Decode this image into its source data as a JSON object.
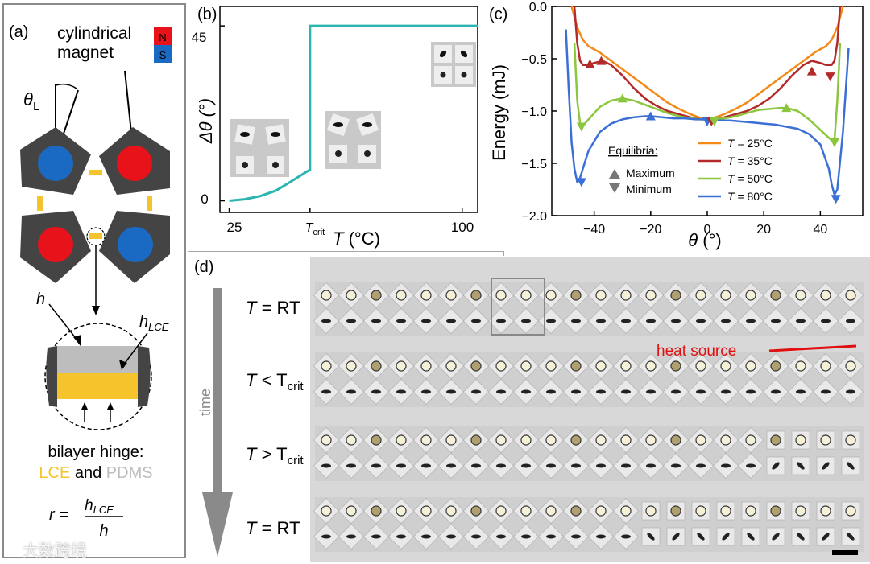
{
  "panel_a": {
    "label": "(a)",
    "magnet_label_line1": "cylindrical",
    "magnet_label_line2": "magnet",
    "pole_n": "N",
    "pole_s": "S",
    "theta_symbol": "θ",
    "theta_sub": "L",
    "h_label": "h",
    "hlce_label": "h",
    "hlce_sub": "LCE",
    "hinge_title": "bilayer hinge:",
    "hinge_lce": "LCE",
    "hinge_and": " and ",
    "hinge_pdms": "PDMS",
    "ratio_lhs": "r =",
    "ratio_num": "h",
    "ratio_num_sub": "LCE",
    "ratio_den": "h",
    "colors": {
      "lce": "#f5c42c",
      "pdms": "#bdbdbd",
      "north": "#e8121a",
      "south": "#1a6ac4",
      "body": "#444444"
    }
  },
  "panel_b": {
    "label": "(b)",
    "ylabel": "Δθ (°)",
    "xlabel_var": "T",
    "xlabel_unit": " (°C)",
    "xtick_25": "25",
    "xtick_crit": "T",
    "xtick_crit_sub": "crit",
    "xtick_100": "100",
    "ytick_0": "0",
    "ytick_45": "45",
    "line_color": "#2bb5b0"
  },
  "panel_c": {
    "label": "(c)",
    "legend_title": "Equilibria:",
    "legend_max": "Maximum",
    "legend_min": "Minimum",
    "legend_t": "T",
    "legend_temps": [
      "= 25°C",
      "= 35°C",
      "= 50°C",
      "= 80°C"
    ]
  },
  "panel_d": {
    "label": "(d)",
    "time_label": "time",
    "heat_source": "heat source",
    "rows": [
      {
        "var": "T",
        "op": " = RT",
        "sub": ""
      },
      {
        "var": "T",
        "op": " < T",
        "sub": "crit"
      },
      {
        "var": "T",
        "op": " > T",
        "sub": "crit"
      },
      {
        "var": "T",
        "op": " = RT",
        "sub": ""
      }
    ]
  },
  "watermark": "大数跨境",
  "chart_data": [
    {
      "type": "line",
      "title": "",
      "xlabel": "T (°C)",
      "ylabel": "Δθ (°)",
      "xlim": [
        22,
        105
      ],
      "ylim": [
        -3,
        50
      ],
      "xticks": [
        25,
        100
      ],
      "yticks": [
        0,
        45
      ],
      "series": [
        {
          "name": "Δθ",
          "color": "#2bb5b0",
          "x": [
            25,
            30,
            35,
            40,
            44,
            51,
            51,
            60,
            70,
            80,
            90,
            100,
            106
          ],
          "y": [
            0,
            0.4,
            1.2,
            2.6,
            4.5,
            8,
            45,
            45,
            45,
            45,
            45,
            45,
            45
          ]
        }
      ]
    },
    {
      "type": "line",
      "title": "",
      "xlabel": "θ (°)",
      "ylabel": "Energy (mJ)",
      "xlim": [
        -55,
        55
      ],
      "ylim": [
        -2.0,
        0.0
      ],
      "xticks": [
        -40,
        -20,
        0,
        20,
        40
      ],
      "yticks": [
        0.0,
        -0.5,
        -1.0,
        -1.5,
        -2.0
      ],
      "series": [
        {
          "name": "T = 25°C",
          "color": "#f28a1a",
          "x": [
            -48,
            -46,
            -44,
            -42,
            -38,
            -34,
            -30,
            -26,
            -22,
            -18,
            -14,
            -10,
            -6,
            -2,
            0,
            2,
            6,
            10,
            14,
            18,
            22,
            26,
            30,
            34,
            38,
            42,
            44,
            46,
            48
          ],
          "y": [
            0.0,
            -0.2,
            -0.32,
            -0.38,
            -0.44,
            -0.52,
            -0.6,
            -0.68,
            -0.76,
            -0.84,
            -0.92,
            -0.98,
            -1.03,
            -1.07,
            -1.08,
            -1.07,
            -1.03,
            -0.98,
            -0.92,
            -0.84,
            -0.76,
            -0.68,
            -0.6,
            -0.52,
            -0.44,
            -0.38,
            -0.32,
            -0.2,
            0.0
          ]
        },
        {
          "name": "T = 35°C",
          "color": "#b22a2a",
          "x": [
            -47,
            -46,
            -45,
            -44,
            -42,
            -40,
            -37,
            -34,
            -30,
            -26,
            -22,
            -18,
            -14,
            -10,
            -6,
            -2,
            0,
            2,
            6,
            10,
            14,
            18,
            22,
            26,
            30,
            34,
            37,
            40,
            42,
            44,
            45,
            46,
            47
          ],
          "y": [
            0.0,
            -0.35,
            -0.52,
            -0.56,
            -0.56,
            -0.54,
            -0.52,
            -0.56,
            -0.66,
            -0.78,
            -0.88,
            -0.95,
            -1.0,
            -1.03,
            -1.06,
            -1.08,
            -1.08,
            -1.08,
            -1.06,
            -1.03,
            -1.0,
            -0.95,
            -0.88,
            -0.78,
            -0.66,
            -0.56,
            -0.52,
            -0.54,
            -0.56,
            -0.56,
            -0.52,
            -0.35,
            0.0
          ]
        },
        {
          "name": "T = 50°C",
          "color": "#8cc63e",
          "x": [
            -47,
            -46,
            -45,
            -44,
            -42,
            -38,
            -34,
            -30,
            -26,
            -22,
            -18,
            -14,
            -10,
            -6,
            -2,
            0,
            2,
            6,
            10,
            14,
            18,
            22,
            26,
            28,
            32,
            36,
            40,
            44,
            45,
            46,
            47
          ],
          "y": [
            -0.35,
            -0.9,
            -1.12,
            -1.14,
            -1.08,
            -0.96,
            -0.9,
            -0.88,
            -0.9,
            -0.94,
            -0.98,
            -1.02,
            -1.05,
            -1.07,
            -1.08,
            -1.08,
            -1.08,
            -1.07,
            -1.05,
            -1.02,
            -0.99,
            -0.98,
            -0.97,
            -0.97,
            -1.0,
            -1.08,
            -1.18,
            -1.28,
            -1.28,
            -0.9,
            -0.35
          ]
        },
        {
          "name": "T = 80°C",
          "color": "#3b6fd6",
          "x": [
            -50,
            -49,
            -48,
            -47,
            -46,
            -45,
            -44,
            -42,
            -38,
            -34,
            -30,
            -26,
            -22,
            -20,
            -16,
            -12,
            -8,
            -4,
            0,
            4,
            8,
            12,
            16,
            20,
            24,
            28,
            32,
            36,
            40,
            43,
            44,
            45,
            46,
            48,
            50
          ],
          "y": [
            -0.22,
            -0.8,
            -1.3,
            -1.55,
            -1.68,
            -1.64,
            -1.55,
            -1.38,
            -1.2,
            -1.12,
            -1.08,
            -1.06,
            -1.05,
            -1.05,
            -1.06,
            -1.07,
            -1.07,
            -1.08,
            -1.08,
            -1.09,
            -1.09,
            -1.1,
            -1.11,
            -1.12,
            -1.13,
            -1.15,
            -1.17,
            -1.22,
            -1.32,
            -1.55,
            -1.7,
            -1.8,
            -1.75,
            -1.2,
            -0.4
          ]
        }
      ],
      "maxima": [
        {
          "x": -41.5,
          "y": -0.55,
          "color": "#b22a2a"
        },
        {
          "x": -37.5,
          "y": -0.52,
          "color": "#b22a2a"
        },
        {
          "x": 37,
          "y": -0.62,
          "color": "#b22a2a"
        },
        {
          "x": -30,
          "y": -0.88,
          "color": "#8cc63e"
        },
        {
          "x": 28,
          "y": -0.97,
          "color": "#8cc63e"
        },
        {
          "x": -20,
          "y": -1.05,
          "color": "#3b6fd6"
        }
      ],
      "minima": [
        {
          "x": 43.5,
          "y": -0.67,
          "color": "#b22a2a"
        },
        {
          "x": -44.5,
          "y": -1.15,
          "color": "#8cc63e"
        },
        {
          "x": 45,
          "y": -1.3,
          "color": "#8cc63e"
        },
        {
          "x": -44.5,
          "y": -1.68,
          "color": "#3b6fd6"
        },
        {
          "x": 45.5,
          "y": -1.84,
          "color": "#3b6fd6"
        },
        {
          "x": 0,
          "y": -1.1,
          "color": "#3b6fd6"
        },
        {
          "x": 1.5,
          "y": -1.1,
          "color": "#b22a2a"
        },
        {
          "x": 2.5,
          "y": -1.1,
          "color": "#8cc63e"
        }
      ]
    }
  ]
}
